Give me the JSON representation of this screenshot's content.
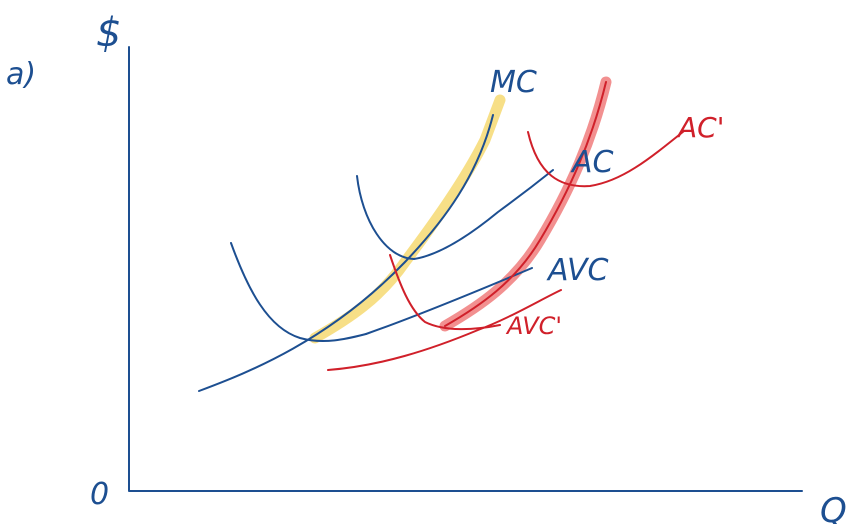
{
  "part_label": "a)",
  "axes": {
    "y_label": "$",
    "x_label": "Q",
    "origin_label": "0"
  },
  "curves": {
    "mc": {
      "label": "MC",
      "color": "#1d4f91",
      "highlight": "#f6dc7a"
    },
    "ac": {
      "label": "AC",
      "color": "#1d4f91"
    },
    "avc": {
      "label": "AVC",
      "color": "#1d4f91"
    },
    "ac_prime": {
      "label": "AC'",
      "color": "#d0202a"
    },
    "avc_prime": {
      "label": "AVC'",
      "color": "#d0202a"
    },
    "mc_prime": {
      "color": "#d0202a",
      "highlight": "#ee6b6b"
    }
  }
}
